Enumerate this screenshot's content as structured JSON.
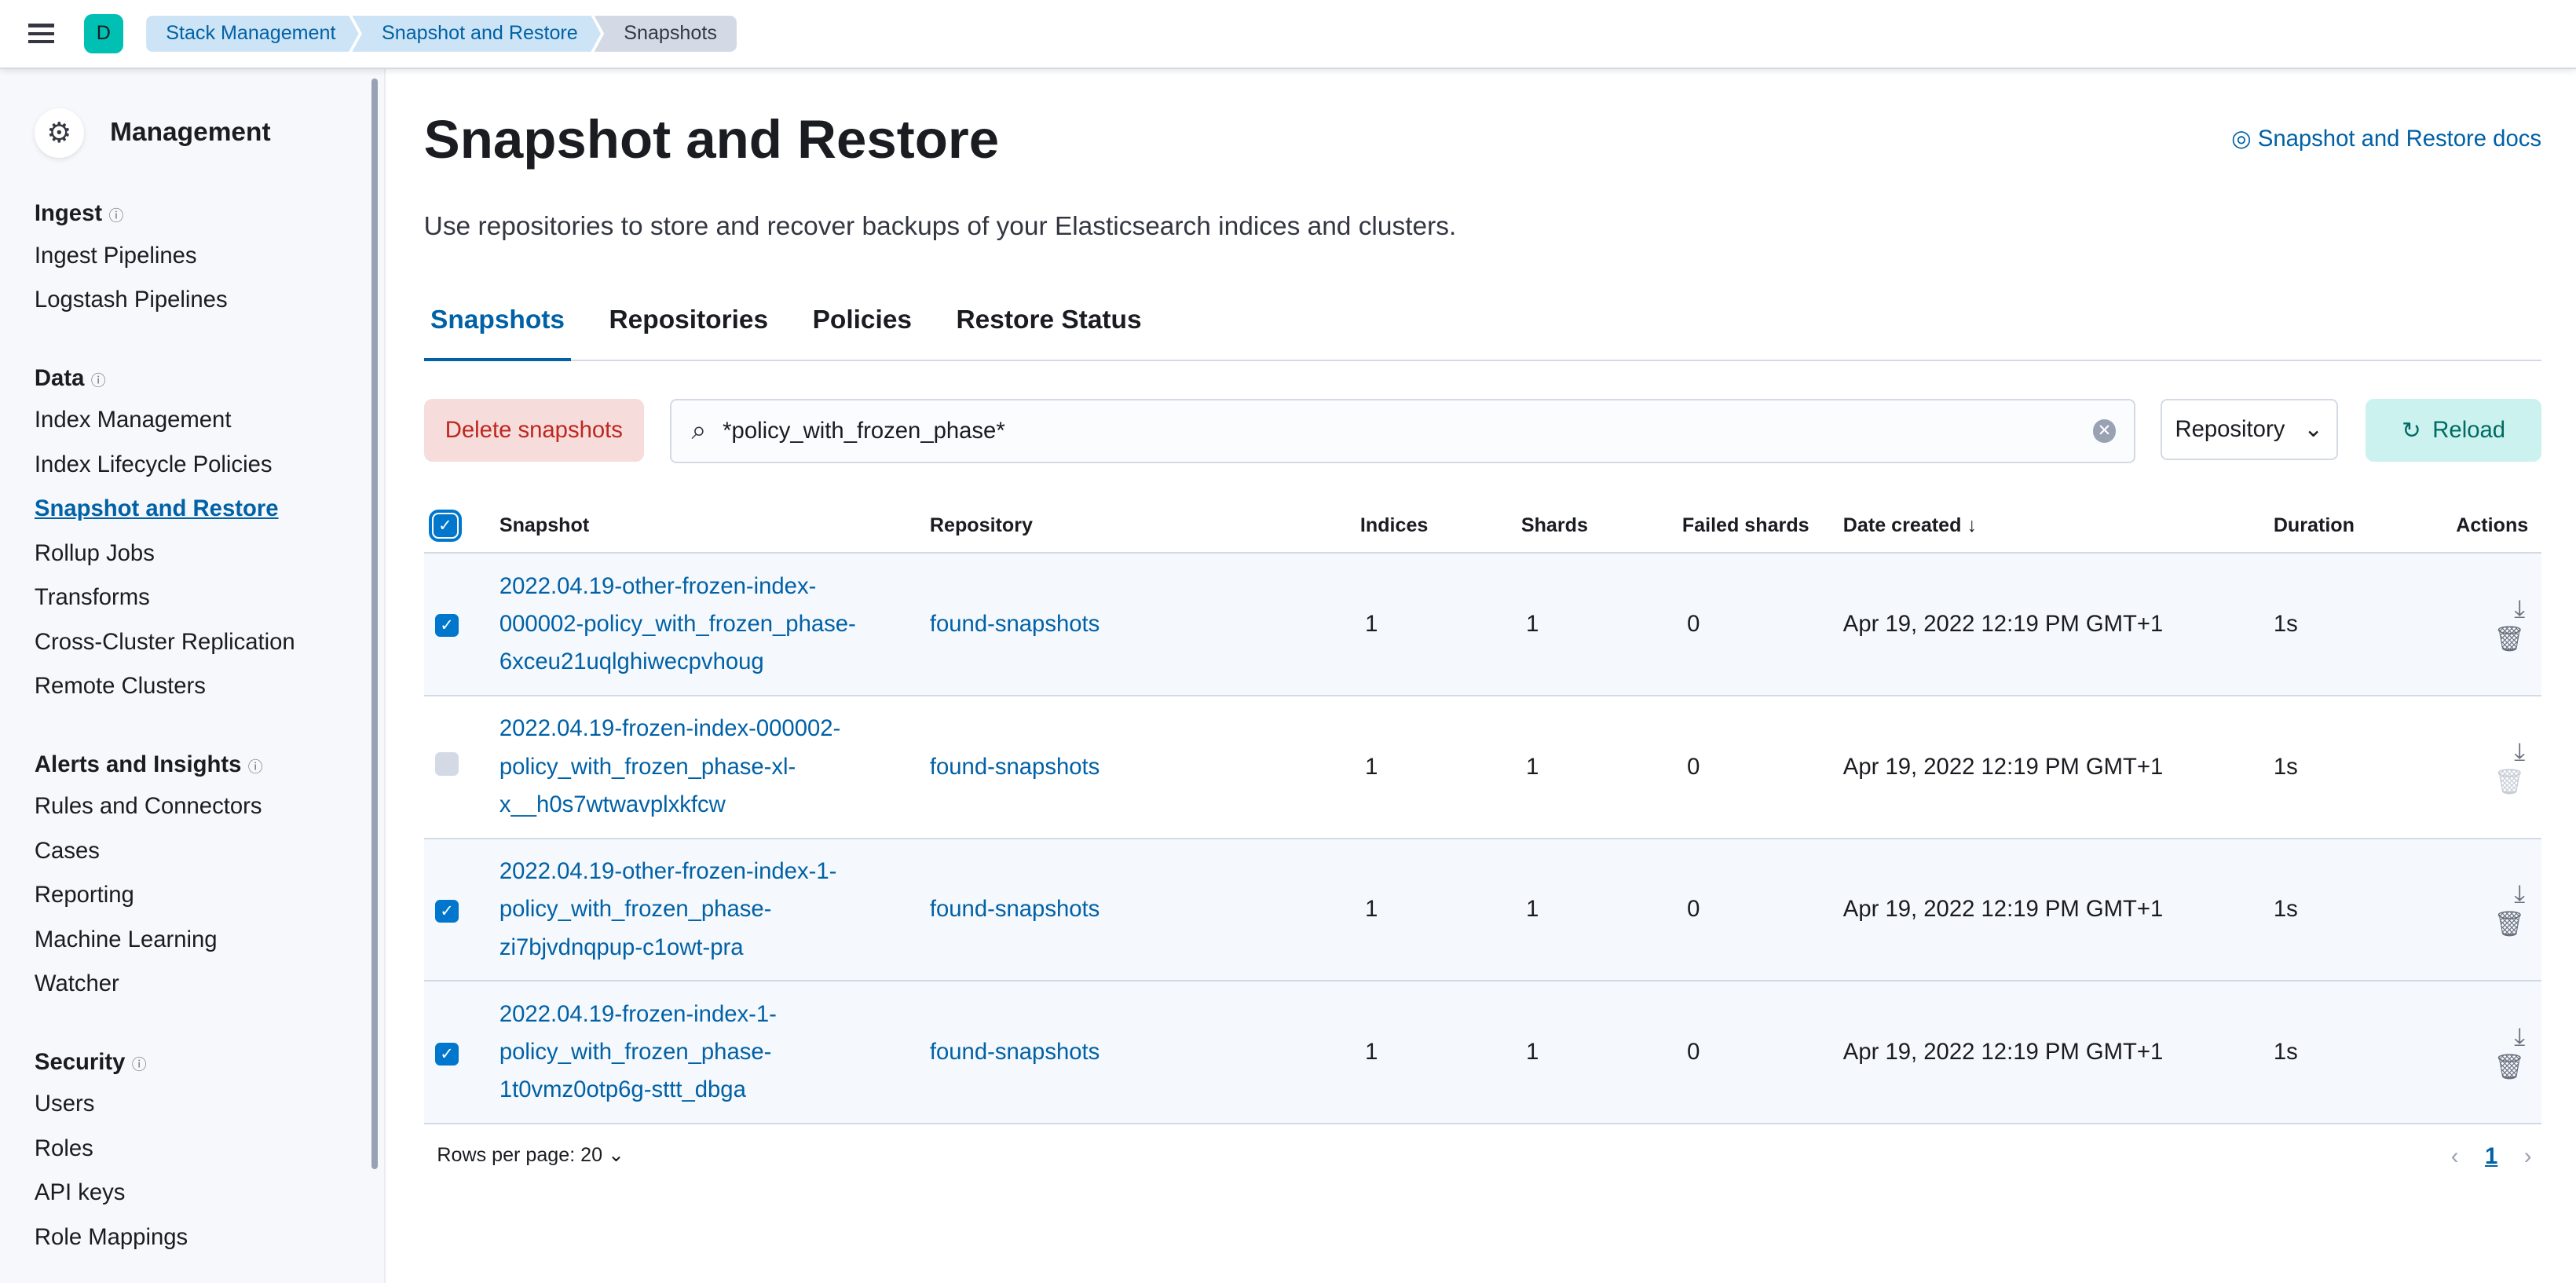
{
  "header": {
    "avatar": "D",
    "breadcrumbs": [
      "Stack Management",
      "Snapshot and Restore",
      "Snapshots"
    ]
  },
  "sidebar": {
    "title": "Management",
    "groups": [
      {
        "label": "Ingest",
        "items": [
          "Ingest Pipelines",
          "Logstash Pipelines"
        ]
      },
      {
        "label": "Data",
        "items": [
          "Index Management",
          "Index Lifecycle Policies",
          "Snapshot and Restore",
          "Rollup Jobs",
          "Transforms",
          "Cross-Cluster Replication",
          "Remote Clusters"
        ]
      },
      {
        "label": "Alerts and Insights",
        "items": [
          "Rules and Connectors",
          "Cases",
          "Reporting",
          "Machine Learning",
          "Watcher"
        ]
      },
      {
        "label": "Security",
        "items": [
          "Users",
          "Roles",
          "API keys",
          "Role Mappings"
        ]
      }
    ],
    "active": "Snapshot and Restore"
  },
  "page": {
    "title": "Snapshot and Restore",
    "docs_link": "Snapshot and Restore docs",
    "description": "Use repositories to store and recover backups of your Elasticsearch indices and clusters.",
    "tabs": [
      "Snapshots",
      "Repositories",
      "Policies",
      "Restore Status"
    ],
    "active_tab": "Snapshots"
  },
  "toolbar": {
    "delete": "Delete snapshots",
    "search_value": "*policy_with_frozen_phase*",
    "repository_filter": "Repository",
    "reload": "Reload"
  },
  "table": {
    "columns": [
      "Snapshot",
      "Repository",
      "Indices",
      "Shards",
      "Failed shards",
      "Date created",
      "Duration",
      "Actions"
    ],
    "sort": "Date created descending",
    "rows": [
      {
        "selected": true,
        "snapshot": [
          "2022.04.19-other-frozen-index-",
          "000002-policy_with_frozen_phase-",
          "6xceu21uqlghiwecpvhoug"
        ],
        "repository": "found-snapshots",
        "indices": "1",
        "shards": "1",
        "failed": "0",
        "date": "Apr 19, 2022 12:19 PM GMT+1",
        "duration": "1s",
        "deletable": true
      },
      {
        "selected": false,
        "snapshot": [
          "2022.04.19-frozen-index-000002-",
          "policy_with_frozen_phase-xl-",
          "x__h0s7wtwavplxkfcw"
        ],
        "repository": "found-snapshots",
        "indices": "1",
        "shards": "1",
        "failed": "0",
        "date": "Apr 19, 2022 12:19 PM GMT+1",
        "duration": "1s",
        "deletable": false
      },
      {
        "selected": true,
        "snapshot": [
          "2022.04.19-other-frozen-index-1-",
          "policy_with_frozen_phase-",
          "zi7bjvdnqpup-c1owt-pra"
        ],
        "repository": "found-snapshots",
        "indices": "1",
        "shards": "1",
        "failed": "0",
        "date": "Apr 19, 2022 12:19 PM GMT+1",
        "duration": "1s",
        "deletable": true
      },
      {
        "selected": true,
        "snapshot": [
          "2022.04.19-frozen-index-1-",
          "policy_with_frozen_phase-",
          "1t0vmz0otp6g-sttt_dbga"
        ],
        "repository": "found-snapshots",
        "indices": "1",
        "shards": "1",
        "failed": "0",
        "date": "Apr 19, 2022 12:19 PM GMT+1",
        "duration": "1s",
        "deletable": true
      }
    ]
  },
  "pagination": {
    "rows_per_page": "Rows per page: 20",
    "current_page": "1"
  }
}
